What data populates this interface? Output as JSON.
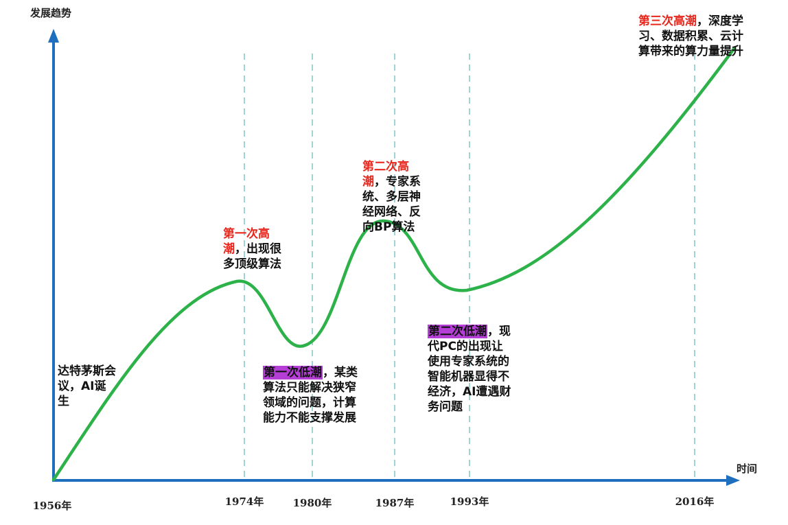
{
  "axes": {
    "y_label": "发展趋势",
    "x_label": "时间",
    "ticks": [
      "1956年",
      "1974年",
      "1980年",
      "1987年",
      "1993年",
      "2016年"
    ]
  },
  "events": {
    "dartmouth": {
      "text": "达特茅斯会议，AI诞生"
    },
    "first_high": {
      "title": "第一次高潮",
      "text": "，出现很多顶级算法"
    },
    "first_low": {
      "title": "第一次低潮",
      "text": "，某类算法只能解决狭窄领域的问题，计算能力不能支撑发展"
    },
    "second_high": {
      "title": "第二次高潮",
      "text": "，专家系统、多层神经网络、反向BP算法"
    },
    "second_low": {
      "title": "第二次低潮",
      "text": "，现代PC的出现让使用专家系统的智能机器显得不经济，AI遭遇财务问题"
    },
    "third_high": {
      "title": "第三次高潮",
      "text": "，深度学习、数据积累、云计算带来的算力量提升"
    }
  },
  "colors": {
    "axis": "#1f6fbf",
    "curve": "#2db24a",
    "guides": "#9fd3d6",
    "high_title": "#e8261c",
    "low_highlight": "#b53fd6"
  }
}
